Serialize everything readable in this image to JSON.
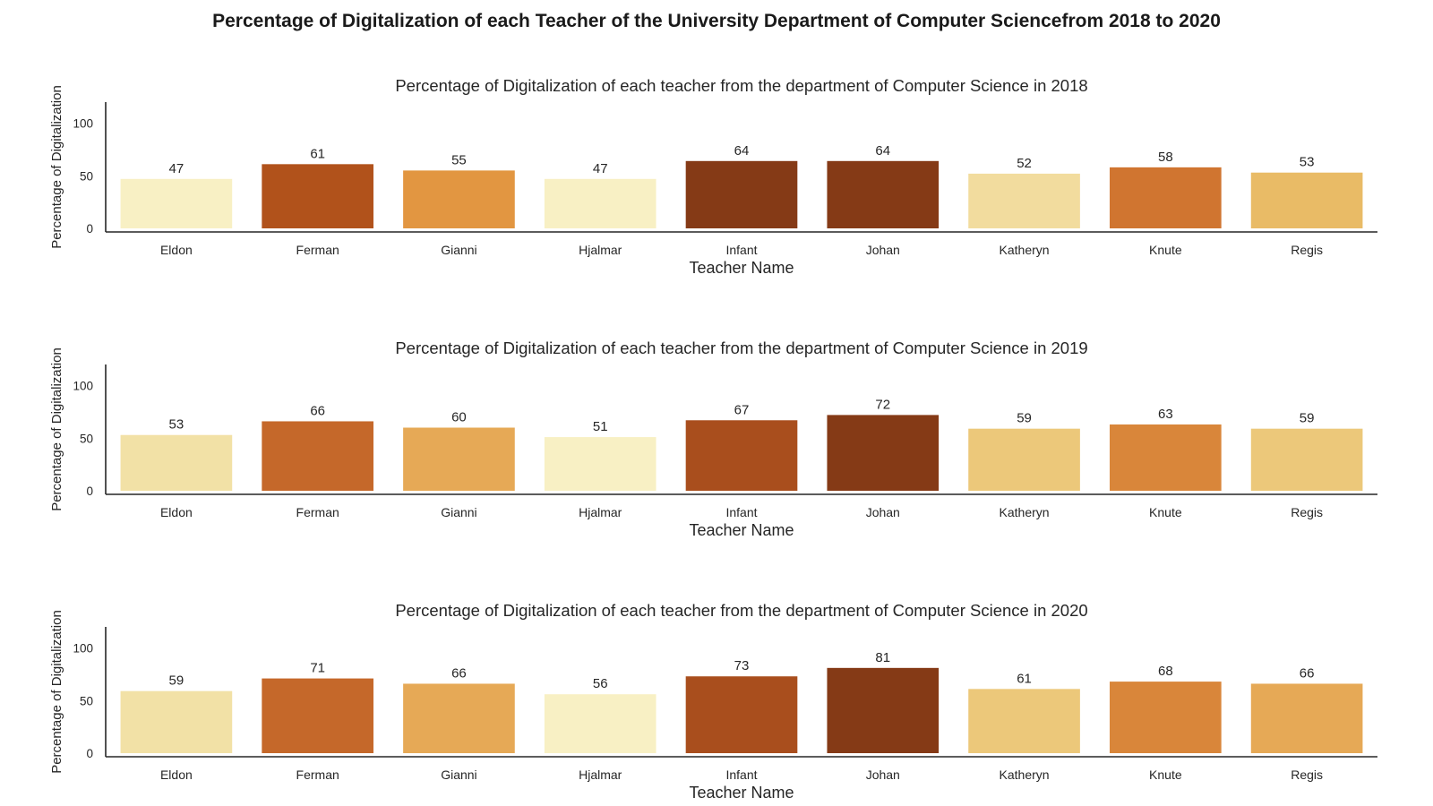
{
  "title": "Percentage of Digitalization of each Teacher of the University Department of Computer Sciencefrom 2018 to 2020",
  "chart_data": [
    {
      "type": "bar",
      "title": "Percentage of Digitalization of each teacher from the department of Computer Science in 2018",
      "xlabel": "Teacher Name",
      "ylabel": "Percentage of Digitalization",
      "categories": [
        "Eldon",
        "Ferman",
        "Gianni",
        "Hjalmar",
        "Infant",
        "Johan",
        "Katheryn",
        "Knute",
        "Regis"
      ],
      "values": [
        47,
        61,
        55,
        47,
        64,
        64,
        52,
        58,
        53
      ],
      "colors": [
        "#f8f0c4",
        "#b1521b",
        "#e29641",
        "#f8f0c4",
        "#853a16",
        "#853a16",
        "#f2dc9e",
        "#d07530",
        "#e9bb66"
      ],
      "ylim": [
        0,
        120
      ],
      "yticks": [
        0,
        50,
        100
      ],
      "grid": false,
      "legend": "none"
    },
    {
      "type": "bar",
      "title": "Percentage of Digitalization of each teacher from the department of Computer Science in 2019",
      "xlabel": "Teacher Name",
      "ylabel": "Percentage of Digitalization",
      "categories": [
        "Eldon",
        "Ferman",
        "Gianni",
        "Hjalmar",
        "Infant",
        "Johan",
        "Katheryn",
        "Knute",
        "Regis"
      ],
      "values": [
        53,
        66,
        60,
        51,
        67,
        72,
        59,
        63,
        59
      ],
      "colors": [
        "#f2e1a6",
        "#c5682a",
        "#e6a956",
        "#f8f0c4",
        "#a94e1d",
        "#853a16",
        "#ecc87a",
        "#d9863a",
        "#ecc87a"
      ],
      "ylim": [
        0,
        120
      ],
      "yticks": [
        0,
        50,
        100
      ],
      "grid": false,
      "legend": "none"
    },
    {
      "type": "bar",
      "title": "Percentage of Digitalization of each teacher from the department of Computer Science in 2020",
      "xlabel": "Teacher Name",
      "ylabel": "Percentage of Digitalization",
      "categories": [
        "Eldon",
        "Ferman",
        "Gianni",
        "Hjalmar",
        "Infant",
        "Johan",
        "Katheryn",
        "Knute",
        "Regis"
      ],
      "values": [
        59,
        71,
        66,
        56,
        73,
        81,
        61,
        68,
        66
      ],
      "colors": [
        "#f2e1a6",
        "#c5682a",
        "#e6a956",
        "#f8f0c4",
        "#a94e1d",
        "#853a16",
        "#ecc87a",
        "#d9863a",
        "#e6a956"
      ],
      "ylim": [
        0,
        120
      ],
      "yticks": [
        0,
        50,
        100
      ],
      "grid": false,
      "legend": "none"
    }
  ]
}
